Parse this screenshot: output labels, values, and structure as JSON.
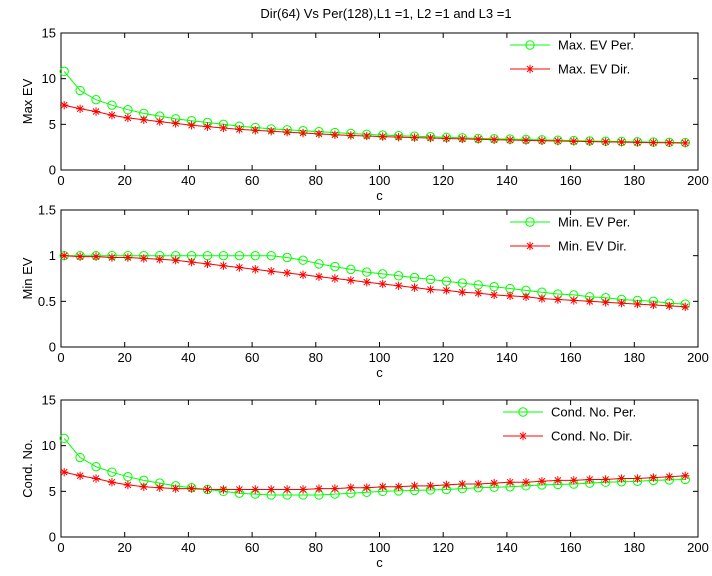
{
  "figure_title": "Dir(64) Vs Per(128),L1 =1, L2 =1 and L3 =1",
  "colors": {
    "per": "#00ff00",
    "dir": "#ff0000",
    "axes": "#000000"
  },
  "chart_data": [
    {
      "type": "line",
      "title": "Dir(64) Vs Per(128),L1 =1, L2 =1 and L3 =1",
      "xlabel": "c",
      "ylabel": "Max EV",
      "xlim": [
        0,
        200
      ],
      "ylim": [
        0,
        15
      ],
      "xticks": [
        "0",
        "20",
        "40",
        "60",
        "80",
        "100",
        "120",
        "140",
        "160",
        "180",
        "200"
      ],
      "yticks": [
        "0",
        "5",
        "10",
        "15"
      ],
      "legend_position": "top-right",
      "x": [
        1,
        6,
        11,
        16,
        21,
        26,
        31,
        36,
        41,
        46,
        51,
        56,
        61,
        66,
        71,
        76,
        81,
        86,
        91,
        96,
        101,
        106,
        111,
        116,
        121,
        126,
        131,
        136,
        141,
        146,
        151,
        156,
        161,
        166,
        171,
        176,
        181,
        186,
        191,
        196
      ],
      "series": [
        {
          "name": "Max. EV Per.",
          "marker": "circle",
          "color": "#00ff00",
          "values": [
            10.8,
            8.7,
            7.7,
            7.1,
            6.6,
            6.2,
            5.9,
            5.6,
            5.4,
            5.2,
            5.0,
            4.8,
            4.65,
            4.5,
            4.4,
            4.3,
            4.2,
            4.1,
            4.0,
            3.9,
            3.82,
            3.76,
            3.7,
            3.64,
            3.58,
            3.52,
            3.46,
            3.42,
            3.38,
            3.34,
            3.3,
            3.26,
            3.22,
            3.18,
            3.15,
            3.12,
            3.09,
            3.06,
            3.03,
            3.0
          ]
        },
        {
          "name": "Max. EV Dir.",
          "marker": "star",
          "color": "#ff0000",
          "values": [
            7.1,
            6.7,
            6.4,
            6.0,
            5.7,
            5.5,
            5.3,
            5.1,
            4.9,
            4.75,
            4.6,
            4.45,
            4.35,
            4.25,
            4.15,
            4.05,
            3.95,
            3.85,
            3.78,
            3.72,
            3.66,
            3.6,
            3.55,
            3.5,
            3.45,
            3.4,
            3.36,
            3.32,
            3.28,
            3.24,
            3.2,
            3.17,
            3.14,
            3.11,
            3.08,
            3.05,
            3.02,
            3.0,
            2.98,
            2.95
          ]
        }
      ]
    },
    {
      "type": "line",
      "xlabel": "c",
      "ylabel": "Min EV",
      "xlim": [
        0,
        200
      ],
      "ylim": [
        0,
        1.5
      ],
      "xticks": [
        "0",
        "20",
        "40",
        "60",
        "80",
        "100",
        "120",
        "140",
        "160",
        "180",
        "200"
      ],
      "yticks": [
        "0",
        "0.5",
        "1",
        "1.5"
      ],
      "legend_position": "top-right",
      "x": [
        1,
        6,
        11,
        16,
        21,
        26,
        31,
        36,
        41,
        46,
        51,
        56,
        61,
        66,
        71,
        76,
        81,
        86,
        91,
        96,
        101,
        106,
        111,
        116,
        121,
        126,
        131,
        136,
        141,
        146,
        151,
        156,
        161,
        166,
        171,
        176,
        181,
        186,
        191,
        196
      ],
      "series": [
        {
          "name": "Min. EV Per.",
          "marker": "circle",
          "color": "#00ff00",
          "values": [
            1.0,
            1.0,
            1.0,
            1.0,
            1.0,
            1.0,
            1.0,
            1.0,
            1.0,
            1.0,
            1.0,
            1.0,
            1.0,
            1.0,
            0.98,
            0.95,
            0.91,
            0.88,
            0.85,
            0.82,
            0.8,
            0.78,
            0.76,
            0.74,
            0.72,
            0.7,
            0.68,
            0.66,
            0.64,
            0.62,
            0.6,
            0.58,
            0.57,
            0.55,
            0.54,
            0.52,
            0.51,
            0.5,
            0.48,
            0.47
          ]
        },
        {
          "name": "Min. EV Dir.",
          "marker": "star",
          "color": "#ff0000",
          "values": [
            1.0,
            0.99,
            0.99,
            0.98,
            0.98,
            0.97,
            0.96,
            0.95,
            0.93,
            0.91,
            0.89,
            0.87,
            0.85,
            0.83,
            0.81,
            0.79,
            0.77,
            0.75,
            0.73,
            0.71,
            0.69,
            0.67,
            0.65,
            0.63,
            0.62,
            0.6,
            0.59,
            0.57,
            0.56,
            0.55,
            0.53,
            0.52,
            0.51,
            0.5,
            0.49,
            0.48,
            0.47,
            0.46,
            0.45,
            0.44
          ]
        }
      ]
    },
    {
      "type": "line",
      "xlabel": "c",
      "ylabel": "Cond. No.",
      "xlim": [
        0,
        200
      ],
      "ylim": [
        0,
        15
      ],
      "xticks": [
        "0",
        "20",
        "40",
        "60",
        "80",
        "100",
        "120",
        "140",
        "160",
        "180",
        "200"
      ],
      "yticks": [
        "0",
        "5",
        "10",
        "15"
      ],
      "legend_position": "top-right",
      "x": [
        1,
        6,
        11,
        16,
        21,
        26,
        31,
        36,
        41,
        46,
        51,
        56,
        61,
        66,
        71,
        76,
        81,
        86,
        91,
        96,
        101,
        106,
        111,
        116,
        121,
        126,
        131,
        136,
        141,
        146,
        151,
        156,
        161,
        166,
        171,
        176,
        181,
        186,
        191,
        196
      ],
      "series": [
        {
          "name": "Cond. No. Per.",
          "marker": "circle",
          "color": "#00ff00",
          "values": [
            10.8,
            8.7,
            7.7,
            7.1,
            6.6,
            6.2,
            5.9,
            5.6,
            5.4,
            5.2,
            5.0,
            4.8,
            4.7,
            4.6,
            4.6,
            4.6,
            4.6,
            4.7,
            4.8,
            4.9,
            5.0,
            5.05,
            5.1,
            5.15,
            5.2,
            5.3,
            5.4,
            5.45,
            5.5,
            5.6,
            5.7,
            5.75,
            5.8,
            5.9,
            6.0,
            6.05,
            6.1,
            6.2,
            6.25,
            6.3
          ]
        },
        {
          "name": "Cond. No. Dir.",
          "marker": "star",
          "color": "#ff0000",
          "values": [
            7.1,
            6.7,
            6.4,
            6.0,
            5.7,
            5.5,
            5.4,
            5.3,
            5.3,
            5.2,
            5.2,
            5.2,
            5.2,
            5.2,
            5.2,
            5.2,
            5.3,
            5.3,
            5.4,
            5.4,
            5.5,
            5.5,
            5.6,
            5.6,
            5.7,
            5.8,
            5.8,
            5.9,
            6.0,
            6.0,
            6.1,
            6.2,
            6.2,
            6.3,
            6.3,
            6.4,
            6.4,
            6.5,
            6.6,
            6.7
          ]
        }
      ]
    }
  ]
}
